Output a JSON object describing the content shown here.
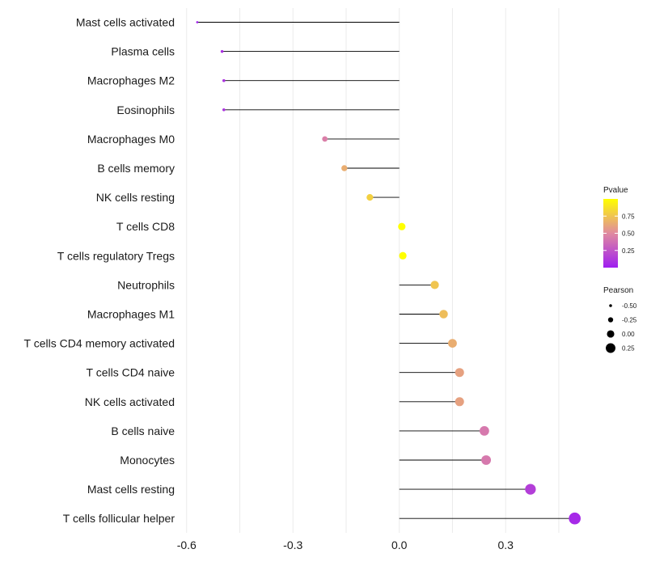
{
  "chart_data": {
    "type": "lollipop",
    "title": "",
    "xlabel": "",
    "ylabel": "",
    "xlim": [
      -0.62,
      0.53
    ],
    "x_ticks": [
      {
        "value": -0.6,
        "label": "-0.6"
      },
      {
        "value": -0.3,
        "label": "-0.3"
      },
      {
        "value": 0.0,
        "label": "0.0"
      },
      {
        "value": 0.3,
        "label": "0.3"
      }
    ],
    "minor_gridlines": [
      -0.45,
      -0.15,
      0.15,
      0.45
    ],
    "baseline": 0.0,
    "categories": [
      "Mast cells activated",
      "Plasma cells",
      "Macrophages M2",
      "Eosinophils",
      "Macrophages M0",
      "B cells memory",
      "NK cells resting",
      "T cells CD8",
      "T cells regulatory  Tregs",
      "Neutrophils",
      "Macrophages M1",
      "T cells CD4 memory activated",
      "T cells CD4 naive",
      "NK cells activated",
      "B cells naive",
      "Monocytes",
      "Mast cells resting",
      "T cells follicular helper"
    ],
    "pearson": [
      -0.57,
      -0.5,
      -0.495,
      -0.495,
      -0.21,
      -0.155,
      -0.083,
      0.007,
      0.01,
      0.1,
      0.125,
      0.15,
      0.17,
      0.17,
      0.24,
      0.245,
      0.37,
      0.495
    ],
    "pvalue": [
      0.02,
      0.08,
      0.1,
      0.1,
      0.45,
      0.65,
      0.8,
      1.0,
      1.0,
      0.75,
      0.72,
      0.65,
      0.6,
      0.6,
      0.42,
      0.42,
      0.15,
      0.05
    ],
    "legend": {
      "color": {
        "title": "Pvalue",
        "ticks": [
          {
            "value": 0.25,
            "label": "0.25"
          },
          {
            "value": 0.5,
            "label": "0.50"
          },
          {
            "value": 0.75,
            "label": "0.75"
          }
        ],
        "range": [
          0.0,
          1.0
        ],
        "low_color": "#9f1ef0",
        "mid_color": "#e08aa0",
        "high_color": "#ffff00"
      },
      "size": {
        "title": "Pearson",
        "entries": [
          {
            "value": -0.5,
            "label": "-0.50"
          },
          {
            "value": -0.25,
            "label": "-0.25"
          },
          {
            "value": 0.0,
            "label": "0.00"
          },
          {
            "value": 0.25,
            "label": "0.25"
          }
        ]
      }
    },
    "colors": {
      "gridline": "#ebebeb",
      "segment": "#000000",
      "text": "#1a1a1a"
    }
  }
}
